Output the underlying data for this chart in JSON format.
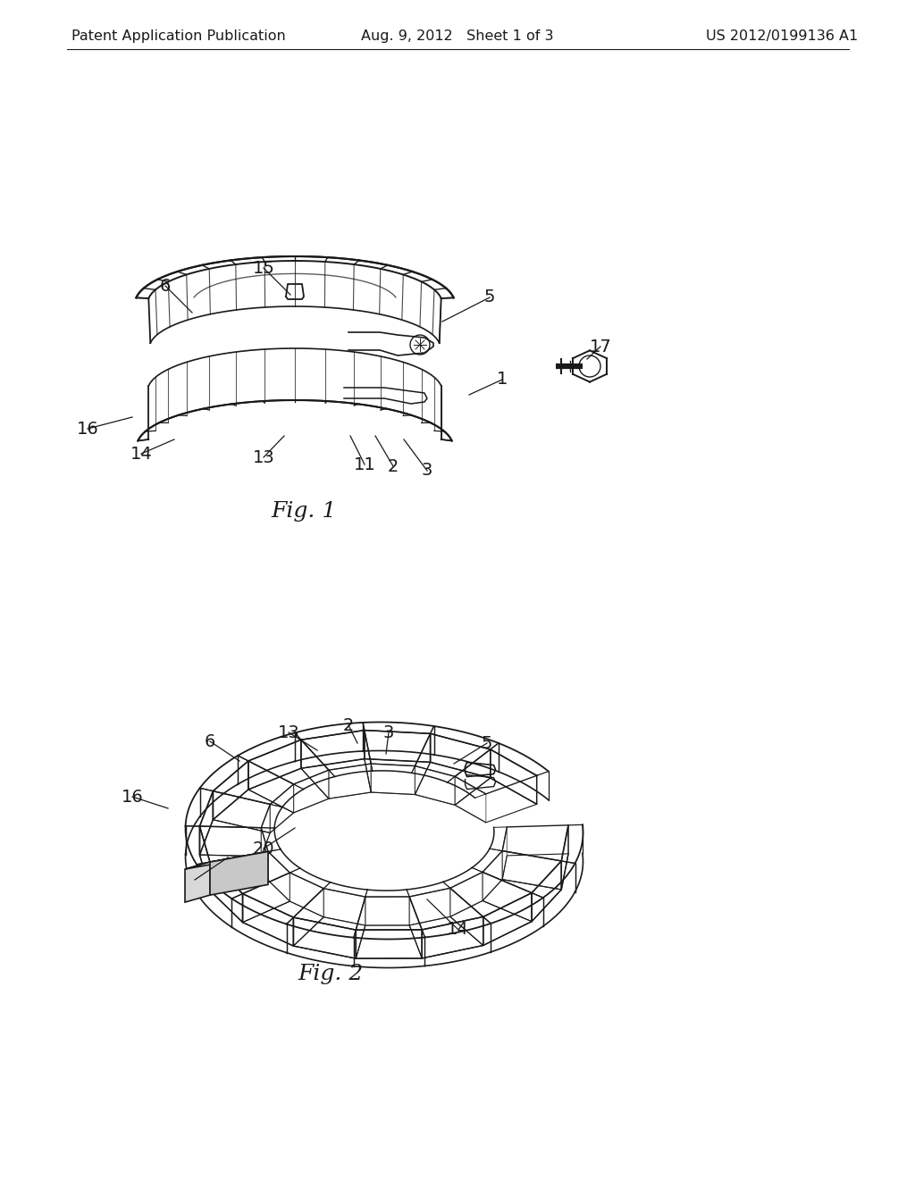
{
  "background_color": "#ffffff",
  "header_left": "Patent Application Publication",
  "header_center": "Aug. 9, 2012   Sheet 1 of 3",
  "header_right": "US 2012/0199136 A1",
  "header_fontsize": 11.5,
  "fig1_caption": "Fig. 1",
  "fig2_caption": "Fig. 2",
  "line_color": "#1a1a1a",
  "label_fontsize": 14,
  "caption_fontsize": 18
}
